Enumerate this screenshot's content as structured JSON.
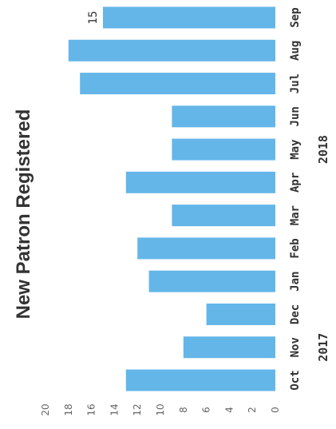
{
  "chart_data": {
    "type": "bar",
    "title": "New Patron Registered",
    "categories": [
      "Oct",
      "Nov",
      "Dec",
      "Jan",
      "Feb",
      "Mar",
      "Apr",
      "May",
      "Jun",
      "Jul",
      "Aug",
      "Sep"
    ],
    "values": [
      13,
      8,
      6,
      11,
      12,
      9,
      13,
      9,
      9,
      17,
      18,
      15
    ],
    "year_groups": [
      {
        "label": "2017",
        "from": 0,
        "to": 2
      },
      {
        "label": "2018",
        "from": 3,
        "to": 11
      }
    ],
    "data_labels": [
      {
        "index": 11,
        "text": "15"
      }
    ],
    "ylim": [
      0,
      20
    ],
    "yticks": [
      0,
      2,
      4,
      6,
      8,
      10,
      12,
      14,
      16,
      18,
      20
    ],
    "orientation": "rotated-90",
    "bar_color": "#64b6e8",
    "grid": false,
    "legend": "none"
  }
}
